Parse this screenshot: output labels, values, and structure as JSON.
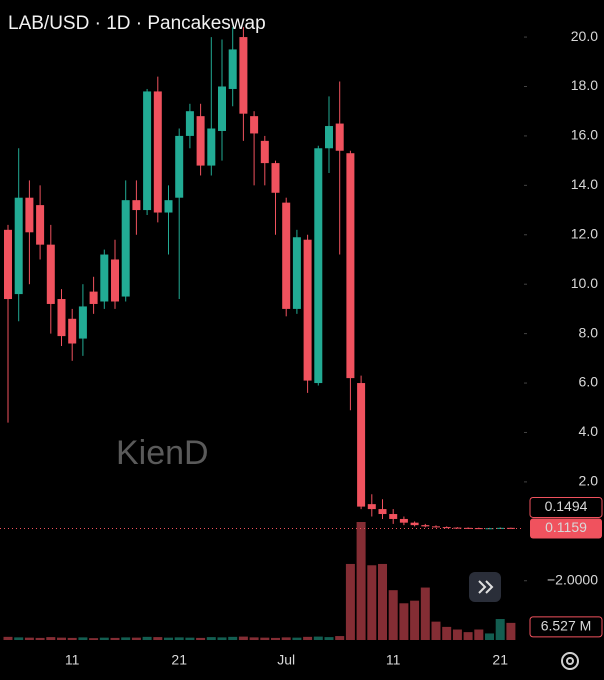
{
  "chart_data": {
    "type": "candlestick",
    "title": "LAB/USD · 1D · Pancakeswap",
    "watermark": "KienD",
    "categories": [
      null,
      null,
      null,
      null,
      null,
      null,
      "11",
      null,
      null,
      null,
      null,
      null,
      null,
      null,
      null,
      null,
      "21",
      null,
      null,
      null,
      null,
      null,
      null,
      null,
      null,
      null,
      "Jul",
      null,
      null,
      null,
      null,
      null,
      null,
      null,
      null,
      null,
      "11",
      null,
      null,
      null,
      null,
      null,
      null,
      null,
      null,
      null,
      "21",
      null
    ],
    "open": [
      12.2,
      9.6,
      13.5,
      13.2,
      11.6,
      9.4,
      8.6,
      7.8,
      9.7,
      9.3,
      11.0,
      9.5,
      13.4,
      13.0,
      17.8,
      12.9,
      13.5,
      16.0,
      16.8,
      14.8,
      16.2,
      17.9,
      20.0,
      16.8,
      15.8,
      14.9,
      13.3,
      9.0,
      11.8,
      6.0,
      15.5,
      16.5,
      15.3,
      6.0,
      1.1,
      0.9,
      0.7,
      0.5,
      0.35,
      0.25,
      0.2,
      0.17,
      0.15,
      0.14,
      0.13,
      0.12,
      0.125,
      0.14
    ],
    "high": [
      12.4,
      15.5,
      14.2,
      14.0,
      12.4,
      9.8,
      9.0,
      10.0,
      10.3,
      11.4,
      11.8,
      14.2,
      14.2,
      17.9,
      18.4,
      14.0,
      16.3,
      17.3,
      17.3,
      20.0,
      19.9,
      20.4,
      20.4,
      17.0,
      16.0,
      15.0,
      13.5,
      12.2,
      12.0,
      15.6,
      17.6,
      18.2,
      15.4,
      6.3,
      1.5,
      1.3,
      0.9,
      0.6,
      0.4,
      0.3,
      0.24,
      0.2,
      0.17,
      0.16,
      0.15,
      0.14,
      0.16,
      0.15
    ],
    "low": [
      4.4,
      8.5,
      10.0,
      11.0,
      8.0,
      7.5,
      6.9,
      7.1,
      8.8,
      9.0,
      9.0,
      9.3,
      12.0,
      12.8,
      12.5,
      11.2,
      9.4,
      15.5,
      14.4,
      14.4,
      15.0,
      17.2,
      15.8,
      14.0,
      14.0,
      12.0,
      8.7,
      8.8,
      5.6,
      5.9,
      14.5,
      11.2,
      4.9,
      0.9,
      0.6,
      0.5,
      0.3,
      0.25,
      0.2,
      0.16,
      0.15,
      0.13,
      0.12,
      0.12,
      0.11,
      0.11,
      0.12,
      0.11
    ],
    "close": [
      9.4,
      13.5,
      12.1,
      11.6,
      9.2,
      7.9,
      7.6,
      9.1,
      9.2,
      11.2,
      9.3,
      13.4,
      13.0,
      17.8,
      12.9,
      13.4,
      16.0,
      17.0,
      14.8,
      16.3,
      18.0,
      19.5,
      16.9,
      16.1,
      14.9,
      13.7,
      9.0,
      11.9,
      6.1,
      15.5,
      16.4,
      15.4,
      6.2,
      1.0,
      0.9,
      0.7,
      0.5,
      0.35,
      0.25,
      0.2,
      0.17,
      0.15,
      0.14,
      0.13,
      0.12,
      0.125,
      0.14,
      0.1159
    ],
    "volume": [
      1.2,
      1.0,
      0.9,
      0.8,
      1.1,
      0.9,
      0.8,
      1.0,
      0.7,
      0.9,
      0.8,
      1.0,
      0.9,
      1.2,
      1.1,
      0.9,
      1.0,
      0.9,
      0.8,
      1.1,
      1.0,
      1.2,
      1.3,
      1.0,
      0.9,
      0.8,
      1.0,
      0.9,
      1.2,
      1.3,
      1.1,
      1.5,
      29,
      45,
      28.5,
      29,
      19,
      14,
      15,
      20,
      7,
      5,
      4,
      3,
      4,
      2.5,
      8,
      6.527
    ],
    "volume_label": "6.527 M",
    "up_color": "#22ab94",
    "down_color": "#f0525e",
    "ylim": [
      -4.6,
      21.5
    ],
    "yticks": [
      {
        "value": 20,
        "label": "20.0"
      },
      {
        "value": 18,
        "label": "18.0"
      },
      {
        "value": 16,
        "label": "16.0"
      },
      {
        "value": 14,
        "label": "14.0"
      },
      {
        "value": 12,
        "label": "12.0"
      },
      {
        "value": 10,
        "label": "10.0"
      },
      {
        "value": 8,
        "label": "8.0"
      },
      {
        "value": 6,
        "label": "6.0"
      },
      {
        "value": 4,
        "label": "4.0"
      },
      {
        "value": 2,
        "label": "2.0"
      },
      {
        "value": -2,
        "label": "−2.0000"
      }
    ],
    "marker_prices": [
      0.1494,
      0.1159
    ]
  }
}
